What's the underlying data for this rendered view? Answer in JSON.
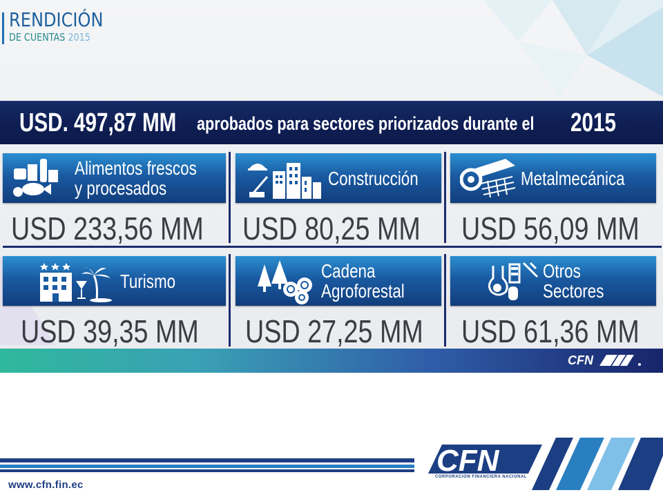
{
  "logo": {
    "line1": "RENDICIÓN",
    "line2_prefix": "DE CUENTAS ",
    "line2_year": "2015"
  },
  "headline": {
    "amount": "USD. 497,87 MM",
    "text": "aprobados para sectores priorizados durante el",
    "year": "2015"
  },
  "sectors": [
    {
      "label_line1": "Alimentos frescos",
      "label_line2": "y procesados",
      "amount": "USD 233,56 MM",
      "icon": "food-icon"
    },
    {
      "label_line1": "Construcción",
      "label_line2": "",
      "amount": "USD 80,25 MM",
      "icon": "construction-icon"
    },
    {
      "label_line1": "Metalmecánica",
      "label_line2": "",
      "amount": "USD 56,09 MM",
      "icon": "metal-icon"
    },
    {
      "label_line1": "Turismo",
      "label_line2": "",
      "amount": "USD 39,35 MM",
      "icon": "tourism-icon"
    },
    {
      "label_line1": "Cadena",
      "label_line2": "Agroforestal",
      "amount": "USD 27,25 MM",
      "icon": "forestry-icon"
    },
    {
      "label_line1": "Otros",
      "label_line2": "Sectores",
      "amount": "USD 61,36 MM",
      "icon": "lab-icon"
    }
  ],
  "footer": {
    "brand": "CFN",
    "brand_sub": "CORPORACION FINANCIERA NACIONAL",
    "url": "www.cfn.fin.ec"
  },
  "colors": {
    "navy": "#0f1f55",
    "banner_blue": "#1a5aa1",
    "brand_blue": "#1c3e83",
    "teal": "#2fb89c"
  }
}
